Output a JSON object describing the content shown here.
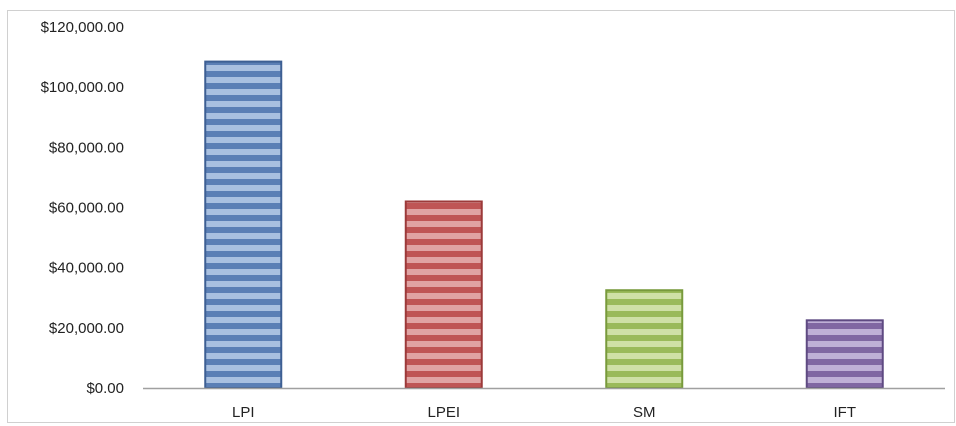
{
  "chart_data": {
    "type": "bar",
    "categories": [
      "LPI",
      "LPEI",
      "SM",
      "IFT"
    ],
    "values": [
      108500,
      62000,
      32500,
      22500
    ],
    "ylim": [
      0,
      120000
    ],
    "yticks": [
      0,
      20000,
      40000,
      60000,
      80000,
      100000,
      120000
    ],
    "ytick_labels": [
      "$0.00",
      "$20,000.00",
      "$40,000.00",
      "$60,000.00",
      "$80,000.00",
      "$100,000.00",
      "$120,000.00"
    ],
    "title": "",
    "xlabel": "",
    "ylabel": "",
    "grid": false,
    "legend": false,
    "bar_colors": [
      "#5b7fb5",
      "#bf5555",
      "#9aba5a",
      "#8067a2"
    ],
    "bar_border_colors": [
      "#3d5f93",
      "#9c3a3a",
      "#789a3c",
      "#5f4a82"
    ],
    "bar_stripe_colors": [
      "#a9c0e0",
      "#e0a3a3",
      "#cfe0a6",
      "#bfb0d6"
    ],
    "axis_color": "#a0a0a0",
    "frame_color": "#d0d0d0"
  }
}
